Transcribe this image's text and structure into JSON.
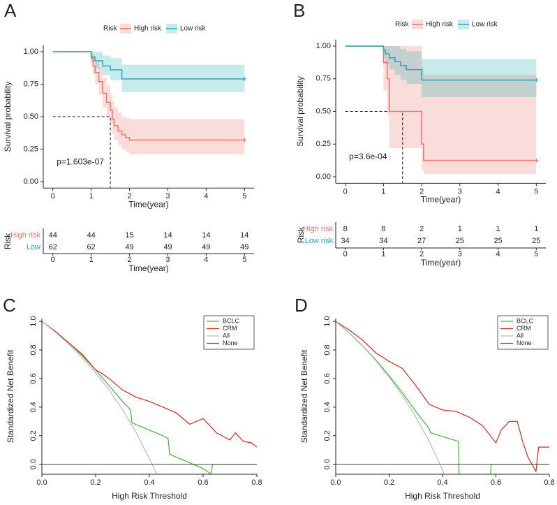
{
  "chart_data": [
    {
      "type": "step",
      "label": "A",
      "legend_title": "Risk",
      "xlabel": "Time(year)",
      "ylabel": "Survival probability",
      "annotation": "p=1.603e-07",
      "median_x": 1.5,
      "median_y": 0.5,
      "xlim": [
        -0.25,
        5.25
      ],
      "xticks": [
        0,
        1,
        2,
        3,
        4,
        5
      ],
      "ylim": [
        -0.05,
        1.05
      ],
      "yticks": [
        {
          "value": 0,
          "label": "0.00"
        },
        {
          "value": 0.25,
          "label": "0.25"
        },
        {
          "value": 0.5,
          "label": "0.50"
        },
        {
          "value": 0.75,
          "label": "0.75"
        },
        {
          "value": 1,
          "label": "1.00"
        }
      ],
      "series": [
        {
          "name": "High risk",
          "color": "#e8766c",
          "x": [
            0,
            1,
            1.05,
            1.1,
            1.2,
            1.3,
            1.4,
            1.5,
            1.55,
            1.6,
            1.7,
            1.8,
            1.9,
            2,
            5
          ],
          "values": [
            1,
            0.95,
            0.89,
            0.84,
            0.77,
            0.68,
            0.61,
            0.55,
            0.48,
            0.43,
            0.39,
            0.36,
            0.34,
            0.32,
            0.32
          ],
          "lower": [
            1,
            0.9,
            0.82,
            0.75,
            0.67,
            0.57,
            0.5,
            0.44,
            0.37,
            0.32,
            0.28,
            0.25,
            0.23,
            0.21,
            0.21
          ],
          "upper": [
            1,
            1,
            0.97,
            0.93,
            0.88,
            0.8,
            0.74,
            0.68,
            0.62,
            0.57,
            0.53,
            0.5,
            0.49,
            0.48,
            0.48
          ]
        },
        {
          "name": "Low risk",
          "color": "#26aab1",
          "x": [
            0,
            1,
            1.1,
            1.3,
            1.5,
            1.8,
            5
          ],
          "values": [
            1,
            0.96,
            0.93,
            0.89,
            0.86,
            0.79,
            0.79
          ],
          "lower": [
            1,
            0.92,
            0.87,
            0.82,
            0.78,
            0.69,
            0.69
          ],
          "upper": [
            1,
            1,
            1,
            0.97,
            0.95,
            0.9,
            0.9
          ]
        }
      ],
      "risk_table": {
        "title": "Risk",
        "rows": [
          {
            "name": "High risk",
            "color": "#e8766c",
            "values": [
              44,
              44,
              15,
              14,
              14,
              14
            ]
          },
          {
            "name": "Low",
            "color": "#26aab1",
            "values": [
              62,
              62,
              49,
              49,
              49,
              49
            ]
          }
        ]
      }
    },
    {
      "type": "step",
      "label": "B",
      "legend_title": "Risk",
      "xlabel": "Time(year)",
      "ylabel": "Survival probability",
      "annotation": "p=3.6e-04",
      "median_x": 1.5,
      "median_y": 0.5,
      "xlim": [
        -0.25,
        5.25
      ],
      "xticks": [
        0,
        1,
        2,
        3,
        4,
        5
      ],
      "ylim": [
        -0.05,
        1.05
      ],
      "yticks": [
        {
          "value": 0,
          "label": "0.00"
        },
        {
          "value": 0.25,
          "label": "0.25"
        },
        {
          "value": 0.5,
          "label": "0.50"
        },
        {
          "value": 0.75,
          "label": "0.75"
        },
        {
          "value": 1,
          "label": "1.00"
        }
      ],
      "series": [
        {
          "name": "High risk",
          "color": "#e8766c",
          "x": [
            0,
            1,
            1.1,
            1.15,
            2,
            2.05,
            5
          ],
          "values": [
            1,
            0.875,
            0.75,
            0.5,
            0.25,
            0.125,
            0.125
          ],
          "lower": [
            1,
            0.66,
            0.47,
            0.22,
            0.05,
            0.02,
            0.02
          ],
          "upper": [
            1,
            1,
            1,
            1,
            0.84,
            0.78,
            0.78
          ]
        },
        {
          "name": "Low risk",
          "color": "#26aab1",
          "x": [
            0,
            1,
            1.05,
            1.15,
            1.3,
            1.45,
            1.6,
            2,
            5
          ],
          "values": [
            1,
            0.97,
            0.94,
            0.91,
            0.88,
            0.85,
            0.82,
            0.74,
            0.74
          ],
          "lower": [
            1,
            0.91,
            0.86,
            0.82,
            0.78,
            0.74,
            0.71,
            0.61,
            0.61
          ],
          "upper": [
            1,
            1,
            1,
            1,
            1,
            0.98,
            0.96,
            0.9,
            0.9
          ]
        }
      ],
      "risk_table": {
        "title": "Risk",
        "rows": [
          {
            "name": "High risk",
            "color": "#e8766c",
            "values": [
              8,
              8,
              2,
              1,
              1,
              1
            ]
          },
          {
            "name": "Low risk",
            "color": "#26aab1",
            "values": [
              34,
              34,
              27,
              25,
              25,
              25
            ]
          }
        ]
      }
    },
    {
      "type": "line",
      "label": "C",
      "xlabel": "High Risk Threshold",
      "ylabel": "Standardized Net Benefit",
      "xlim": [
        0,
        0.8
      ],
      "xticks": [
        {
          "value": 0,
          "label": "0.0"
        },
        {
          "value": 0.2,
          "label": "0.2"
        },
        {
          "value": 0.4,
          "label": "0.4"
        },
        {
          "value": 0.6,
          "label": "0.6"
        },
        {
          "value": 0.8,
          "label": "0.8"
        }
      ],
      "ylim": [
        -0.07,
        1.02
      ],
      "yticks": [
        {
          "value": 0,
          "label": "0.0"
        },
        {
          "value": 0.2,
          "label": "0.2"
        },
        {
          "value": 0.4,
          "label": "0.4"
        },
        {
          "value": 0.6,
          "label": "0.6"
        },
        {
          "value": 0.8,
          "label": "0.8"
        },
        {
          "value": 1,
          "label": "1.0"
        }
      ],
      "series": [
        {
          "name": "BCLC",
          "color": "#3cb832",
          "x": [
            0,
            0.05,
            0.1,
            0.15,
            0.2,
            0.25,
            0.3,
            0.33,
            0.335,
            0.45,
            0.47,
            0.475,
            0.6,
            0.63,
            0.635,
            0.8
          ],
          "values": [
            1,
            0.93,
            0.85,
            0.76,
            0.66,
            0.55,
            0.44,
            0.38,
            0.29,
            0.2,
            0.18,
            0.07,
            -0.03,
            -0.07,
            0,
            0
          ]
        },
        {
          "name": "CRM",
          "color": "#d42a1e",
          "x": [
            0,
            0.05,
            0.1,
            0.15,
            0.2,
            0.22,
            0.25,
            0.3,
            0.35,
            0.4,
            0.45,
            0.5,
            0.55,
            0.6,
            0.65,
            0.7,
            0.72,
            0.75,
            0.78,
            0.8
          ],
          "values": [
            1,
            0.93,
            0.85,
            0.77,
            0.66,
            0.64,
            0.6,
            0.52,
            0.47,
            0.44,
            0.4,
            0.36,
            0.28,
            0.32,
            0.22,
            0.17,
            0.22,
            0.16,
            0.15,
            0.12
          ]
        },
        {
          "name": "All",
          "color": "#bbbbbb",
          "x": [
            0,
            0.05,
            0.1,
            0.15,
            0.2,
            0.25,
            0.3,
            0.35,
            0.4,
            0.43
          ],
          "values": [
            1,
            0.924,
            0.84,
            0.746,
            0.64,
            0.52,
            0.383,
            0.224,
            0.04,
            -0.08
          ]
        },
        {
          "name": "None",
          "color": "#555555",
          "x": [
            0,
            0.8
          ],
          "values": [
            0,
            0
          ]
        }
      ]
    },
    {
      "type": "line",
      "label": "D",
      "xlabel": "High Risk Threshold",
      "ylabel": "Standardized Net Benefit",
      "xlim": [
        0,
        0.8
      ],
      "xticks": [
        {
          "value": 0,
          "label": "0.0"
        },
        {
          "value": 0.2,
          "label": "0.2"
        },
        {
          "value": 0.4,
          "label": "0.4"
        },
        {
          "value": 0.6,
          "label": "0.6"
        },
        {
          "value": 0.8,
          "label": "0.8"
        }
      ],
      "ylim": [
        -0.07,
        1.02
      ],
      "yticks": [
        {
          "value": 0,
          "label": "0.0"
        },
        {
          "value": 0.2,
          "label": "0.2"
        },
        {
          "value": 0.4,
          "label": "0.4"
        },
        {
          "value": 0.6,
          "label": "0.6"
        },
        {
          "value": 0.8,
          "label": "0.8"
        },
        {
          "value": 1,
          "label": "1.0"
        }
      ],
      "series": [
        {
          "name": "BCLC",
          "color": "#3cb832",
          "x": [
            0,
            0.05,
            0.1,
            0.15,
            0.2,
            0.25,
            0.3,
            0.35,
            0.355,
            0.46,
            0.462,
            0.52,
            0.58,
            0.582,
            0.8
          ],
          "values": [
            1,
            0.92,
            0.83,
            0.73,
            0.62,
            0.5,
            0.37,
            0.25,
            0.22,
            0.16,
            -0.07,
            null,
            -0.07,
            0,
            0
          ]
        },
        {
          "name": "CRM",
          "color": "#d42a1e",
          "x": [
            0,
            0.05,
            0.1,
            0.15,
            0.2,
            0.25,
            0.3,
            0.35,
            0.4,
            0.45,
            0.5,
            0.55,
            0.6,
            0.62,
            0.65,
            0.68,
            0.7,
            0.72,
            0.75,
            0.76,
            0.77,
            0.8
          ],
          "values": [
            1,
            0.94,
            0.87,
            0.78,
            0.72,
            0.67,
            0.55,
            0.42,
            0.38,
            0.37,
            0.33,
            0.27,
            0.15,
            0.24,
            0.3,
            0.3,
            0.16,
            0.05,
            -0.05,
            0.12,
            0.12,
            0.12
          ]
        },
        {
          "name": "All",
          "color": "#bbbbbb",
          "x": [
            0,
            0.05,
            0.1,
            0.15,
            0.2,
            0.25,
            0.3,
            0.35,
            0.4,
            0.41
          ],
          "values": [
            1,
            0.918,
            0.827,
            0.725,
            0.61,
            0.48,
            0.331,
            0.16,
            -0.04,
            -0.084
          ]
        },
        {
          "name": "None",
          "color": "#555555",
          "x": [
            0,
            0.8
          ],
          "values": [
            0,
            0
          ]
        }
      ]
    }
  ]
}
